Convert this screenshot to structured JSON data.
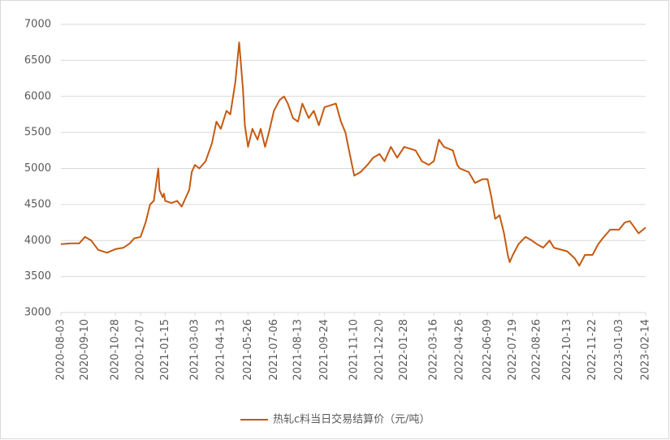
{
  "chart_data": {
    "type": "line",
    "x": [
      "2020-08-03",
      "2020-08-20",
      "2020-09-01",
      "2020-09-10",
      "2020-09-20",
      "2020-10-01",
      "2020-10-15",
      "2020-10-28",
      "2020-11-10",
      "2020-11-20",
      "2020-11-27",
      "2020-12-07",
      "2020-12-15",
      "2020-12-22",
      "2020-12-28",
      "2021-01-04",
      "2021-01-06",
      "2021-01-11",
      "2021-01-13",
      "2021-01-15",
      "2021-01-25",
      "2021-02-03",
      "2021-02-10",
      "2021-02-22",
      "2021-02-26",
      "2021-03-03",
      "2021-03-10",
      "2021-03-20",
      "2021-03-30",
      "2021-04-06",
      "2021-04-13",
      "2021-04-22",
      "2021-04-28",
      "2021-05-06",
      "2021-05-12",
      "2021-05-18",
      "2021-05-21",
      "2021-05-26",
      "2021-06-02",
      "2021-06-10",
      "2021-06-15",
      "2021-06-22",
      "2021-06-28",
      "2021-07-06",
      "2021-07-15",
      "2021-07-22",
      "2021-07-28",
      "2021-08-05",
      "2021-08-13",
      "2021-08-20",
      "2021-08-30",
      "2021-09-07",
      "2021-09-15",
      "2021-09-24",
      "2021-10-12",
      "2021-10-20",
      "2021-10-27",
      "2021-11-03",
      "2021-11-10",
      "2021-11-20",
      "2021-12-01",
      "2021-12-10",
      "2021-12-20",
      "2021-12-28",
      "2022-01-07",
      "2022-01-17",
      "2022-01-28",
      "2022-02-15",
      "2022-02-25",
      "2022-03-08",
      "2022-03-16",
      "2022-03-24",
      "2022-04-01",
      "2022-04-15",
      "2022-04-22",
      "2022-04-26",
      "2022-05-10",
      "2022-05-20",
      "2022-06-01",
      "2022-06-09",
      "2022-06-15",
      "2022-06-21",
      "2022-06-28",
      "2022-07-05",
      "2022-07-11",
      "2022-07-14",
      "2022-07-19",
      "2022-07-28",
      "2022-08-08",
      "2022-08-18",
      "2022-08-26",
      "2022-09-05",
      "2022-09-15",
      "2022-09-22",
      "2022-10-13",
      "2022-10-25",
      "2022-11-01",
      "2022-11-10",
      "2022-11-22",
      "2022-12-01",
      "2022-12-10",
      "2022-12-20",
      "2023-01-03",
      "2023-01-12",
      "2023-01-20",
      "2023-02-03",
      "2023-02-14"
    ],
    "series": [
      {
        "name": "热轧c料当日交易结算价（元/吨）",
        "color": "#c55a11",
        "values": [
          3950,
          3960,
          3960,
          4050,
          4000,
          3870,
          3830,
          3880,
          3900,
          3960,
          4030,
          4050,
          4250,
          4500,
          4550,
          5000,
          4700,
          4600,
          4650,
          4550,
          4520,
          4550,
          4470,
          4700,
          4950,
          5050,
          5000,
          5100,
          5350,
          5650,
          5550,
          5800,
          5750,
          6200,
          6750,
          6100,
          5600,
          5300,
          5550,
          5400,
          5550,
          5300,
          5500,
          5800,
          5950,
          6000,
          5900,
          5700,
          5650,
          5900,
          5700,
          5800,
          5600,
          5850,
          5900,
          5650,
          5500,
          5200,
          4900,
          4950,
          5050,
          5150,
          5200,
          5100,
          5300,
          5150,
          5300,
          5250,
          5100,
          5050,
          5100,
          5400,
          5300,
          5250,
          5050,
          5000,
          4950,
          4800,
          4850,
          4850,
          4600,
          4300,
          4350,
          4100,
          3800,
          3700,
          3800,
          3950,
          4050,
          4000,
          3950,
          3900,
          4000,
          3900,
          3850,
          3750,
          3650,
          3800,
          3800,
          3950,
          4050,
          4150,
          4150,
          4250,
          4270,
          4100,
          4180
        ]
      }
    ],
    "xlim": [
      "2020-08-03",
      "2023-02-14"
    ],
    "xticks": [
      "2020-08-03",
      "2020-09-10",
      "2020-10-28",
      "2020-12-07",
      "2021-01-15",
      "2021-03-03",
      "2021-04-13",
      "2021-05-26",
      "2021-07-06",
      "2021-08-13",
      "2021-09-24",
      "2021-11-10",
      "2021-12-20",
      "2022-01-28",
      "2022-03-16",
      "2022-04-26",
      "2022-06-09",
      "2022-07-19",
      "2022-08-26",
      "2022-10-13",
      "2022-11-22",
      "2023-01-03",
      "2023-02-14"
    ],
    "ylim": [
      3000,
      7000
    ],
    "yticks": [
      3000,
      3500,
      4000,
      4500,
      5000,
      5500,
      6000,
      6500,
      7000
    ],
    "grid": true,
    "legend": "bottom"
  }
}
